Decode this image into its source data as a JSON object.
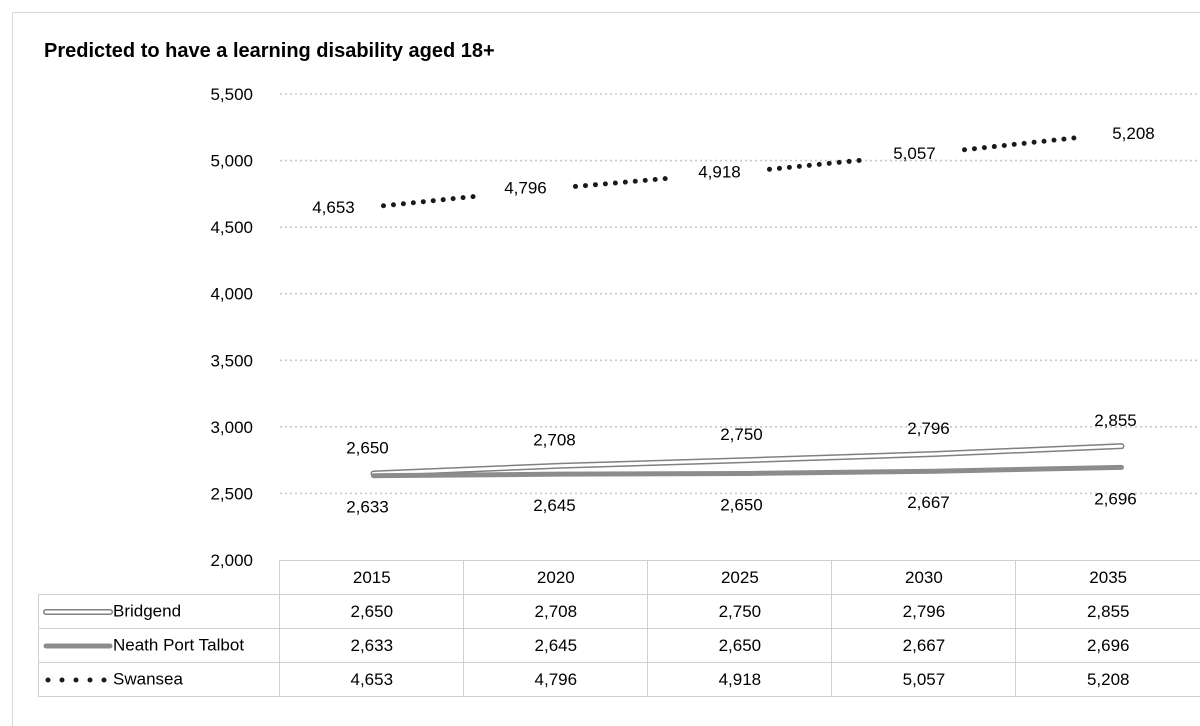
{
  "chart_data": {
    "type": "line",
    "title": "Predicted to have a learning disability aged 18+",
    "categories": [
      "2015",
      "2020",
      "2025",
      "2030",
      "2035"
    ],
    "series": [
      {
        "name": "Bridgend",
        "values": [
          2650,
          2708,
          2750,
          2796,
          2855
        ],
        "labels": [
          "2,650",
          "2,708",
          "2,750",
          "2,796",
          "2,855"
        ],
        "style": "double-outline",
        "color": "#808080"
      },
      {
        "name": "Neath Port Talbot",
        "values": [
          2633,
          2645,
          2650,
          2667,
          2696
        ],
        "labels": [
          "2,633",
          "2,645",
          "2,650",
          "2,667",
          "2,696"
        ],
        "style": "thick-solid",
        "color": "#8c8c8c"
      },
      {
        "name": "Swansea",
        "values": [
          4653,
          4796,
          4918,
          5057,
          5208
        ],
        "labels": [
          "4,653",
          "4,796",
          "4,918",
          "5,057",
          "5,208"
        ],
        "style": "round-dot",
        "color": "#1a1a1a"
      }
    ],
    "ylim": [
      2000,
      5500
    ],
    "yticks": [
      2000,
      2500,
      3000,
      3500,
      4000,
      4500,
      5000,
      5500
    ],
    "ytick_labels": [
      "2,000",
      "2,500",
      "3,000",
      "3,500",
      "4,000",
      "4,500",
      "5,000",
      "5,500"
    ],
    "grid": true,
    "legend": "data-table"
  }
}
